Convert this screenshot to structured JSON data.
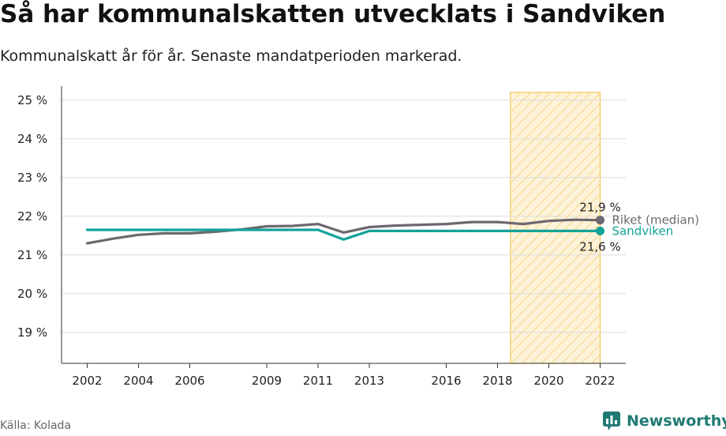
{
  "header": {
    "title": "Så har kommunalskatten utvecklats i Sandviken",
    "subtitle": "Kommunalskatt år för år. Senaste mandatperioden markerad."
  },
  "footer": {
    "source": "Källa: Kolada",
    "brand": "Newsworthy"
  },
  "colors": {
    "riket": "#6d6870",
    "sandviken": "#12a399",
    "highlight_fill": "#fdf3d9",
    "highlight_stroke": "#f6c65b",
    "brand": "#1f7a74"
  },
  "icons": {
    "brand_logo": "newsworthy-logo-icon"
  },
  "chart_data": {
    "type": "line",
    "x": [
      2002,
      2003,
      2004,
      2005,
      2006,
      2007,
      2008,
      2009,
      2010,
      2011,
      2012,
      2013,
      2014,
      2015,
      2016,
      2017,
      2018,
      2019,
      2020,
      2021,
      2022
    ],
    "x_ticks": [
      2002,
      2004,
      2006,
      2009,
      2011,
      2013,
      2016,
      2018,
      2020,
      2022
    ],
    "x_tick_labels": [
      "2002",
      "2004",
      "2006",
      "2009",
      "2011",
      "2013",
      "2016",
      "2018",
      "2020",
      "2022"
    ],
    "y_ticks": [
      19,
      20,
      21,
      22,
      23,
      24,
      25
    ],
    "y_tick_labels": [
      "19 %",
      "20 %",
      "21 %",
      "22 %",
      "23 %",
      "24 %",
      "25 %"
    ],
    "ylim": [
      18.2,
      25.2
    ],
    "xlim": [
      2001,
      2023
    ],
    "grid": true,
    "highlight": {
      "from": 2018.5,
      "to": 2022
    },
    "series": [
      {
        "key": "riket",
        "name": "Riket (median)",
        "values": [
          21.3,
          21.42,
          21.52,
          21.56,
          21.56,
          21.6,
          21.66,
          21.74,
          21.75,
          21.8,
          21.58,
          21.72,
          21.76,
          21.78,
          21.8,
          21.85,
          21.85,
          21.8,
          21.88,
          21.91,
          21.9
        ],
        "end_label": "21,9 %"
      },
      {
        "key": "sandviken",
        "name": "Sandviken",
        "values": [
          21.65,
          21.65,
          21.65,
          21.65,
          21.65,
          21.65,
          21.65,
          21.65,
          21.65,
          21.65,
          21.4,
          21.62,
          21.62,
          21.62,
          21.62,
          21.62,
          21.62,
          21.62,
          21.62,
          21.62,
          21.62
        ],
        "end_label": "21,6 %"
      }
    ]
  }
}
